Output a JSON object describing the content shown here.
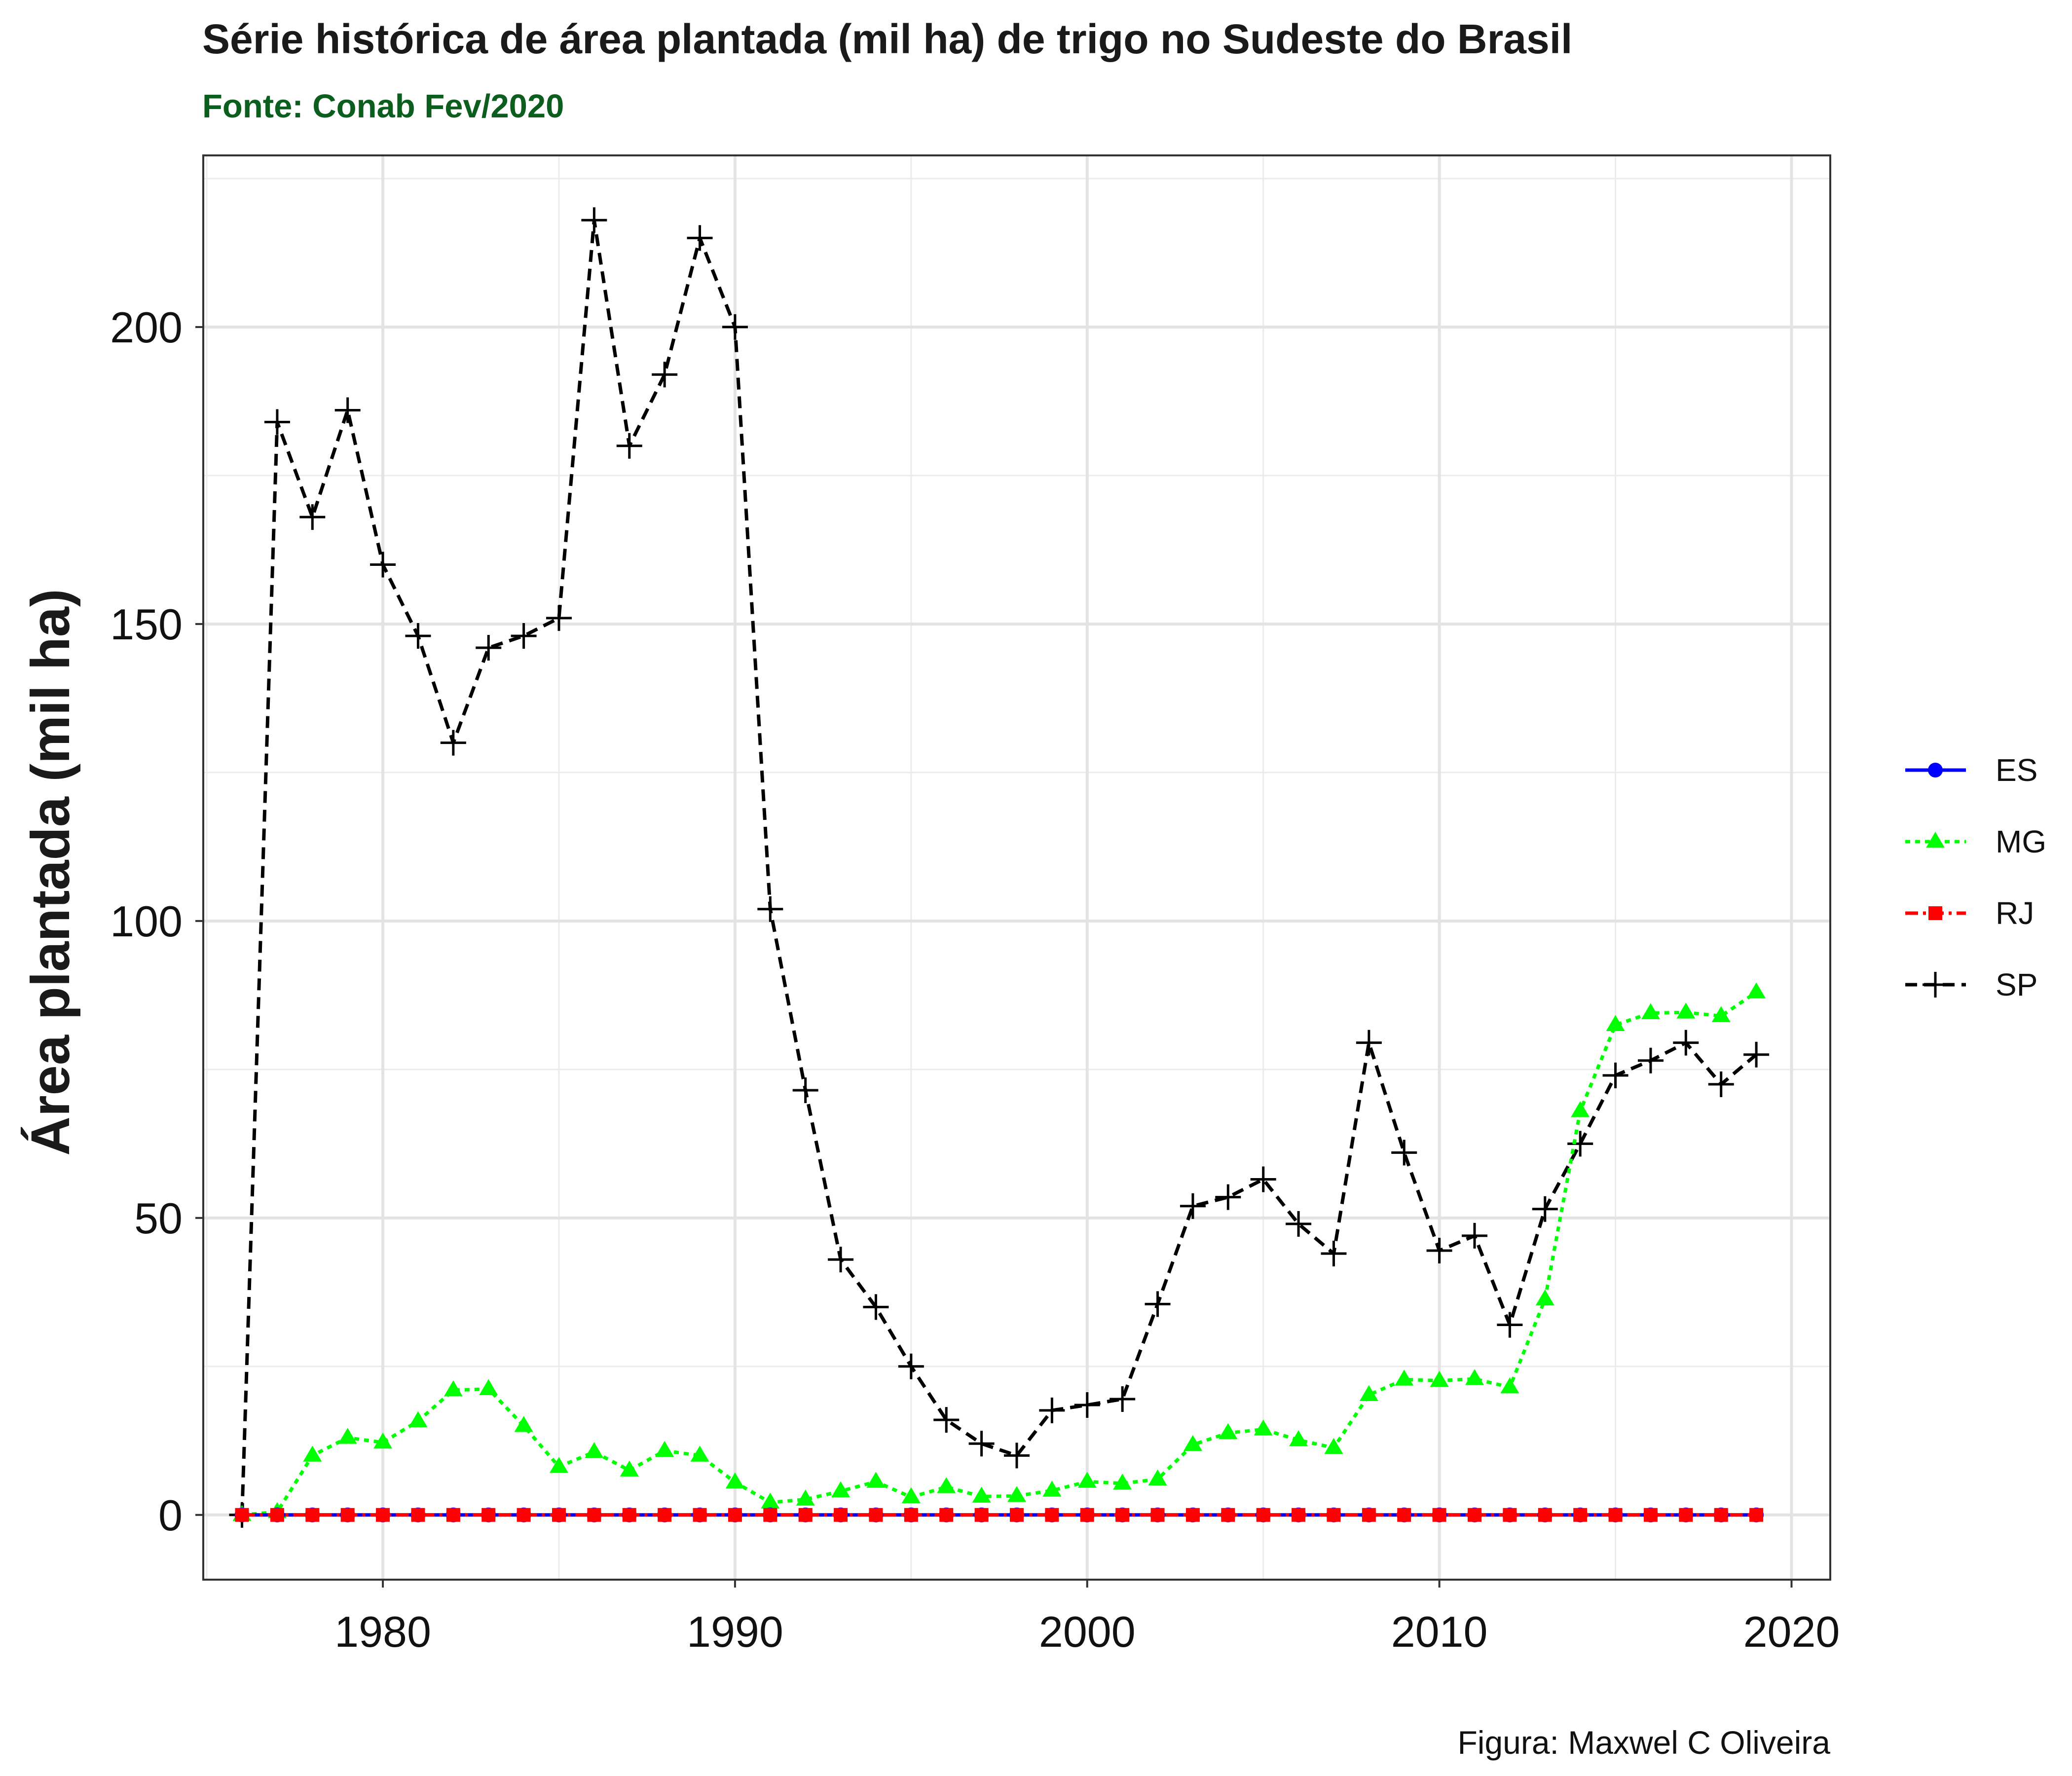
{
  "chart_data": {
    "type": "line",
    "title": "Série histórica de área plantada (mil ha) de trigo no Sudeste do Brasil",
    "subtitle": "Fonte: Conab Fev/2020",
    "xlabel": "",
    "ylabel": "Área plantada (mil ha)",
    "caption": "Figura: Maxwel C Oliveira",
    "xlim": [
      1974.9,
      2021.1
    ],
    "ylim": [
      -10.9,
      228.9
    ],
    "xticks": [
      1980,
      1990,
      2000,
      2010,
      2020
    ],
    "yticks": [
      0,
      50,
      100,
      150,
      200
    ],
    "grid": true,
    "legend_position": "right",
    "x": [
      1976,
      1977,
      1978,
      1979,
      1980,
      1981,
      1982,
      1983,
      1984,
      1985,
      1986,
      1987,
      1988,
      1989,
      1990,
      1991,
      1992,
      1993,
      1994,
      1995,
      1996,
      1997,
      1998,
      1999,
      2000,
      2001,
      2002,
      2003,
      2004,
      2005,
      2006,
      2007,
      2008,
      2009,
      2010,
      2011,
      2012,
      2013,
      2014,
      2015,
      2016,
      2017,
      2018,
      2019
    ],
    "series": [
      {
        "name": "ES",
        "color": "#0000ff",
        "linestyle": "solid",
        "marker": "circle",
        "values": [
          0,
          0,
          0,
          0,
          0,
          0,
          0,
          0,
          0,
          0,
          0,
          0,
          0,
          0,
          0,
          0,
          0,
          0,
          0,
          0,
          0,
          0,
          0,
          0,
          0,
          0,
          0,
          0,
          0,
          0,
          0,
          0,
          0,
          0,
          0,
          0,
          0,
          0,
          0,
          0,
          0,
          0,
          0,
          0
        ]
      },
      {
        "name": "MG",
        "color": "#00ff00",
        "linestyle": "dotted",
        "marker": "triangle",
        "values": [
          0,
          0.5,
          10,
          13,
          12.2,
          15.8,
          21,
          21.2,
          15,
          8.1,
          10.6,
          7.5,
          10.8,
          10,
          5.5,
          2.1,
          2.6,
          4,
          5.6,
          3,
          4.7,
          3.1,
          3.2,
          4.1,
          5.6,
          5.3,
          6,
          11.8,
          13.8,
          14.4,
          12.6,
          11.3,
          20.2,
          22.8,
          22.6,
          22.9,
          21.5,
          36.3,
          68,
          82.5,
          84.5,
          84.6,
          84,
          88
        ]
      },
      {
        "name": "RJ",
        "color": "#ff0000",
        "linestyle": "dashdot",
        "marker": "square",
        "values": [
          0,
          0,
          0,
          0,
          0,
          0,
          0,
          0,
          0,
          0,
          0,
          0,
          0,
          0,
          0,
          0,
          0,
          0,
          0,
          0,
          0,
          0,
          0,
          0,
          0,
          0,
          0,
          0,
          0,
          0,
          0,
          0,
          0,
          0,
          0,
          0,
          0,
          0,
          0,
          0,
          0,
          0,
          0,
          0
        ]
      },
      {
        "name": "SP",
        "color": "#000000",
        "linestyle": "dashed",
        "marker": "plus",
        "values": [
          0,
          184,
          168,
          186,
          160,
          148,
          130,
          146,
          148,
          151,
          218,
          180,
          192,
          215,
          200,
          102,
          71.5,
          43,
          35,
          25,
          16,
          12,
          10,
          17.6,
          18.5,
          19.5,
          35.5,
          52,
          53.5,
          56.5,
          49,
          44,
          79.5,
          61,
          44.5,
          47,
          32,
          51.5,
          62.5,
          74,
          76.5,
          79.5,
          72.5,
          77.5
        ]
      }
    ]
  }
}
